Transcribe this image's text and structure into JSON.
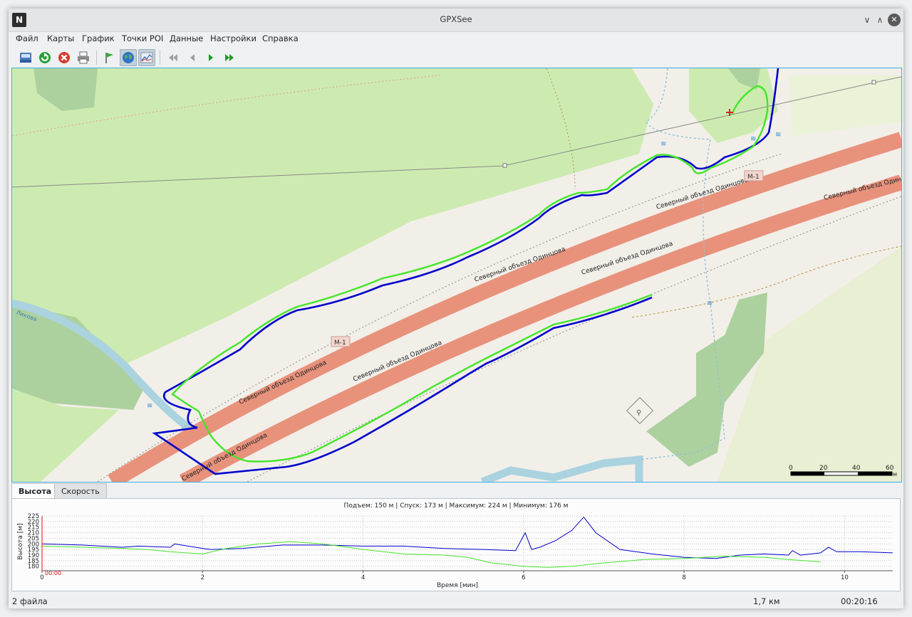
{
  "window": {
    "title": "GPXSee"
  },
  "menu": [
    "Файл",
    "Карты",
    "График",
    "Точки POI",
    "Данные",
    "Настройки",
    "Справка"
  ],
  "toolbar": {
    "icons": [
      "open-file-icon",
      "reload-icon",
      "close-file-icon",
      "print-icon",
      "show-poi-icon",
      "show-map-icon",
      "show-graphs-icon",
      "first-icon",
      "previous-icon",
      "next-icon",
      "last-icon"
    ]
  },
  "map": {
    "road_labels": [
      "Северный объезд Одинцова",
      "Северный объезд Одинцова",
      "Северный объезд Одинцова",
      "Северный объезд Одинцова",
      "Северный объезд Одинцова",
      "Северный объезд Одинцова",
      "Северный объезд Одинцова"
    ],
    "road_badge": "M-1",
    "river_label": "Ликова",
    "scale": {
      "ticks": [
        "0",
        "20",
        "40",
        "60"
      ],
      "unit": "м"
    },
    "colors": {
      "track1": "#0000cc",
      "track2": "#44e52a",
      "motorway": "#e8927c",
      "forest": "#add19e",
      "meadow": "#cdebb0"
    }
  },
  "graph": {
    "tabs": [
      "Высота",
      "Скорость"
    ],
    "summary": "Подъем: 150 м | Спуск: 173 м | Максимум: 224 м | Минимум: 176 м",
    "ylabel": "Высота [м]",
    "xlabel": "Время [мин]",
    "position_label": "00:00"
  },
  "chart_data": {
    "type": "line",
    "xlabel": "Время [мин]",
    "ylabel": "Высота [м]",
    "xlim": [
      0,
      10.6
    ],
    "ylim": [
      176,
      225
    ],
    "xticks": [
      "0",
      "2",
      "4",
      "6",
      "8",
      "10"
    ],
    "yticks": [
      "225",
      "220",
      "215",
      "210",
      "205",
      "200",
      "195",
      "190",
      "185",
      "180"
    ],
    "series": [
      {
        "color": "#0000cc",
        "x": [
          0,
          0.5,
          1,
          1.2,
          1.6,
          1.65,
          2,
          2.1,
          2.5,
          3,
          3.5,
          4,
          4.5,
          5,
          5.5,
          5.9,
          6.02,
          6.1,
          6.2,
          6.4,
          6.6,
          6.75,
          6.9,
          7.2,
          7.6,
          8,
          8.4,
          8.7,
          9,
          9.3,
          9.35,
          9.45,
          9.7,
          9.8,
          9.9,
          10.2,
          10.6
        ],
        "y": [
          200,
          199,
          197,
          198,
          197,
          200,
          196,
          195,
          196,
          199,
          199,
          198,
          198,
          196,
          195,
          194,
          210,
          195,
          197,
          203,
          212,
          224,
          210,
          195,
          191,
          188,
          187,
          190,
          191,
          190,
          194,
          190,
          192,
          197,
          193,
          193,
          192
        ]
      },
      {
        "color": "#44e52a",
        "x": [
          0,
          0.5,
          1,
          1.3,
          1.6,
          2,
          2.3,
          2.7,
          3.1,
          3.5,
          4,
          4.5,
          5,
          5.3,
          5.6,
          6,
          6.3,
          6.6,
          7,
          7.5,
          8,
          8.5,
          9,
          9.3,
          9.7
        ],
        "y": [
          198,
          197,
          196,
          195,
          193,
          191,
          196,
          200,
          202,
          200,
          195,
          191,
          190,
          188,
          183,
          180,
          179,
          180,
          183,
          186,
          187,
          189,
          188,
          186,
          184
        ]
      }
    ]
  },
  "status": {
    "files": "2 файла",
    "distance": "1,7 км",
    "time": "00:20:16"
  }
}
